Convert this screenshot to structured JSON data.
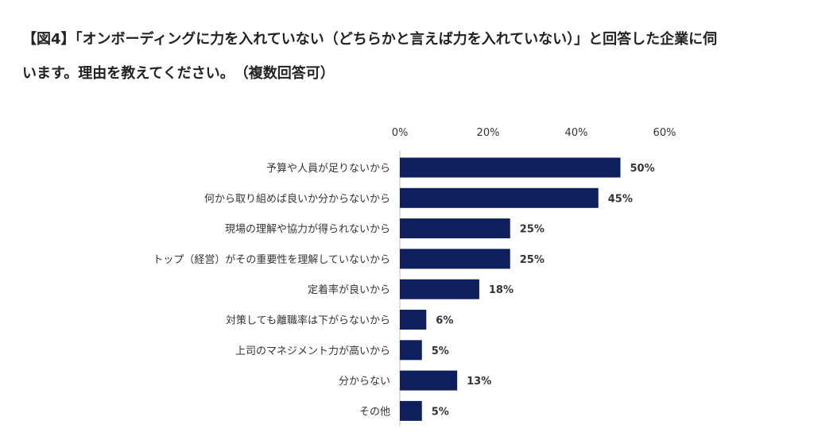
{
  "title": {
    "line1": "【図4】「オンボーディングに力を入れていない（どちらかと言えば力を入れていない）」と回答した企業に伺",
    "line2": "います。理由を教えてください。　（複数回答可）"
  },
  "chart_data": {
    "type": "bar",
    "orientation": "horizontal",
    "title": "【図4】「オンボーディングに力を入れていない（どちらかと言えば力を入れていない）」と回答した企業に伺います。理由を教えてください。　（複数回答可）",
    "categories": [
      "予算や人員が足りないから",
      "何から取り組めば良いか分からないから",
      "現場の理解や協力が得られないから",
      "トップ（経営）がその重要性を理解していないから",
      "定着率が良いから",
      "対策しても離職率は下がらないから",
      "上司のマネジメント力が高いから",
      "分からない",
      "その他"
    ],
    "values": [
      50,
      45,
      25,
      25,
      18,
      6,
      5,
      13,
      5
    ],
    "value_labels": [
      "50%",
      "45%",
      "25%",
      "25%",
      "18%",
      "6%",
      "5%",
      "13%",
      "5%"
    ],
    "xlim": [
      0,
      60
    ],
    "x_ticks": [
      0,
      20,
      40,
      60
    ],
    "x_tick_labels": [
      "0%",
      "20%",
      "40%",
      "60%"
    ],
    "x_axis_position": "top",
    "grid": false,
    "legend": "none",
    "bar_color": "#0d1f5c",
    "axis_color": "#bfbfbf"
  }
}
